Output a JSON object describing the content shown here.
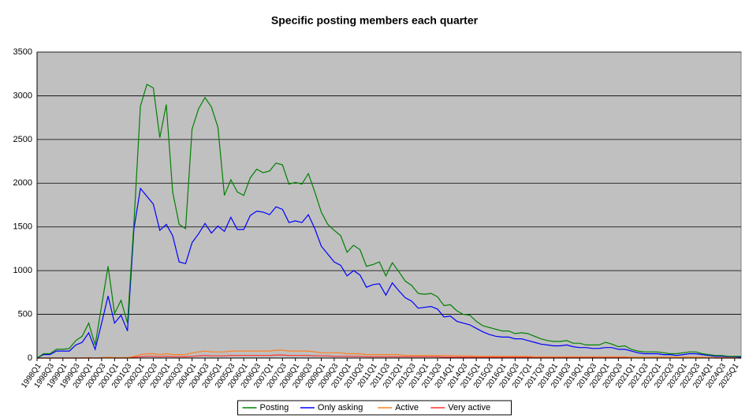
{
  "chart_data": {
    "type": "line",
    "title": "Specific posting members each quarter",
    "categories": [
      "1998Q1",
      null,
      "1998Q3",
      null,
      "1999Q1",
      null,
      "1999Q3",
      null,
      "2000Q1",
      null,
      "2000Q3",
      null,
      "2001Q1",
      null,
      "2001Q3",
      null,
      "2002Q1",
      null,
      "2002Q3",
      null,
      "2003Q1",
      null,
      "2003Q3",
      null,
      "2004Q1",
      null,
      "2004Q3",
      null,
      "2005Q1",
      null,
      "2005Q3",
      null,
      "2006Q1",
      null,
      "2006Q3",
      null,
      "2007Q1",
      null,
      "2007Q3",
      null,
      "2008Q1",
      null,
      "2008Q3",
      null,
      "2009Q1",
      null,
      "2009Q3",
      null,
      "2010Q1",
      null,
      "2010Q3",
      null,
      "2011Q1",
      null,
      "2011Q3",
      null,
      "2012Q1",
      null,
      "2012Q3",
      null,
      "2013Q1",
      null,
      "2013Q3",
      null,
      "2014Q1",
      null,
      "2014Q3",
      null,
      "2015Q1",
      null,
      "2015Q3",
      null,
      "2016Q1",
      null,
      "2016Q3",
      null,
      "2017Q1",
      null,
      "2017Q3",
      null,
      "2018Q1",
      null,
      "2018Q3",
      null,
      "2019Q1",
      null,
      "2019Q3",
      null,
      "2020Q1",
      null,
      "2020Q3",
      null,
      "2021Q1",
      null,
      "2021Q3",
      null,
      "2022Q1",
      null,
      "2022Q3",
      null,
      "2023Q1",
      null,
      "2023Q3",
      null,
      "2024Q1",
      null,
      "2024Q3",
      null,
      "2025Q1",
      null
    ],
    "series": [
      {
        "name": "Posting",
        "color": "#008000",
        "values": [
          0,
          50,
          50,
          100,
          100,
          110,
          200,
          250,
          400,
          150,
          600,
          1050,
          510,
          660,
          400,
          1550,
          2880,
          3130,
          3090,
          2520,
          2900,
          1900,
          1530,
          1480,
          2620,
          2850,
          2980,
          2870,
          2640,
          1860,
          2040,
          1900,
          1860,
          2060,
          2160,
          2120,
          2140,
          2230,
          2210,
          1990,
          2010,
          1990,
          2110,
          1900,
          1670,
          1530,
          1460,
          1400,
          1210,
          1290,
          1240,
          1050,
          1070,
          1100,
          940,
          1090,
          990,
          880,
          830,
          740,
          730,
          740,
          700,
          600,
          610,
          540,
          500,
          490,
          420,
          370,
          350,
          330,
          310,
          310,
          280,
          290,
          280,
          250,
          220,
          200,
          190,
          190,
          200,
          170,
          170,
          150,
          150,
          150,
          180,
          160,
          130,
          140,
          100,
          80,
          70,
          70,
          70,
          60,
          50,
          50,
          60,
          70,
          70,
          50,
          40,
          30,
          30,
          20,
          20,
          20
        ]
      },
      {
        "name": "Only asking",
        "color": "#0000ff",
        "values": [
          0,
          40,
          40,
          80,
          80,
          80,
          150,
          180,
          290,
          100,
          400,
          710,
          400,
          490,
          310,
          1480,
          1940,
          1850,
          1760,
          1460,
          1530,
          1400,
          1100,
          1080,
          1320,
          1420,
          1540,
          1430,
          1510,
          1450,
          1610,
          1470,
          1470,
          1630,
          1680,
          1670,
          1640,
          1730,
          1700,
          1550,
          1570,
          1550,
          1640,
          1480,
          1280,
          1190,
          1100,
          1060,
          940,
          1000,
          950,
          810,
          840,
          850,
          720,
          860,
          770,
          690,
          650,
          570,
          580,
          590,
          560,
          470,
          480,
          420,
          400,
          380,
          340,
          300,
          270,
          250,
          240,
          240,
          220,
          220,
          200,
          180,
          160,
          150,
          140,
          140,
          150,
          130,
          120,
          120,
          110,
          110,
          120,
          120,
          100,
          100,
          80,
          60,
          50,
          50,
          50,
          40,
          40,
          30,
          40,
          50,
          50,
          40,
          30,
          20,
          20,
          15,
          15,
          10
        ]
      },
      {
        "name": "Active",
        "color": "#ff8020",
        "values": [
          0,
          0,
          0,
          0,
          0,
          0,
          0,
          0,
          5,
          0,
          5,
          10,
          5,
          5,
          5,
          20,
          40,
          50,
          50,
          40,
          50,
          40,
          40,
          40,
          60,
          70,
          80,
          70,
          70,
          70,
          80,
          80,
          80,
          80,
          80,
          80,
          80,
          90,
          90,
          80,
          80,
          80,
          80,
          70,
          60,
          60,
          60,
          60,
          50,
          50,
          50,
          40,
          40,
          40,
          40,
          40,
          40,
          30,
          30,
          30,
          30,
          30,
          30,
          30,
          30,
          25,
          25,
          25,
          20,
          20,
          20,
          20,
          20,
          20,
          20,
          20,
          20,
          15,
          15,
          15,
          15,
          15,
          15,
          15,
          15,
          15,
          15,
          15,
          15,
          15,
          15,
          15,
          10,
          10,
          10,
          10,
          10,
          10,
          10,
          10,
          10,
          10,
          10,
          10,
          5,
          5,
          5,
          5,
          5,
          5
        ]
      },
      {
        "name": "Very active",
        "color": "#ff3030",
        "values": [
          0,
          0,
          0,
          0,
          0,
          0,
          0,
          0,
          0,
          0,
          0,
          5,
          0,
          0,
          0,
          10,
          15,
          20,
          20,
          15,
          20,
          15,
          15,
          15,
          20,
          25,
          30,
          25,
          25,
          25,
          30,
          30,
          30,
          30,
          30,
          30,
          30,
          35,
          35,
          30,
          30,
          30,
          30,
          25,
          25,
          25,
          20,
          20,
          20,
          20,
          20,
          15,
          15,
          15,
          15,
          15,
          15,
          15,
          15,
          15,
          15,
          15,
          15,
          10,
          10,
          10,
          10,
          10,
          10,
          10,
          10,
          10,
          10,
          10,
          10,
          10,
          10,
          5,
          5,
          5,
          5,
          5,
          5,
          5,
          5,
          5,
          5,
          5,
          5,
          5,
          5,
          5,
          5,
          5,
          5,
          5,
          5,
          5,
          5,
          5,
          5,
          5,
          5,
          5,
          5,
          0,
          0,
          0,
          0,
          0
        ]
      }
    ],
    "ylim": [
      0,
      3500
    ],
    "yticks": [
      0,
      500,
      1000,
      1500,
      2000,
      2500,
      3000,
      3500
    ],
    "grid": true,
    "legend": "bottom"
  }
}
